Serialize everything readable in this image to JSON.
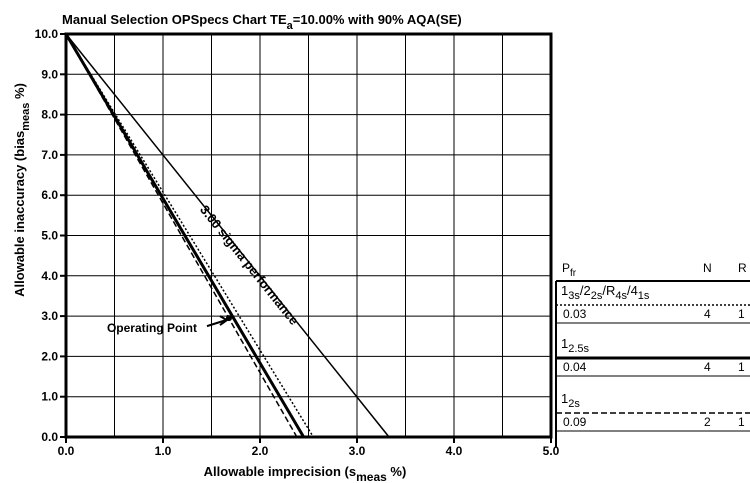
{
  "chart_data": {
    "type": "line",
    "title": {
      "main": "Manual Selection OPSpecs Chart TE",
      "sub": "a",
      "rest": "=10.00% with 90% AQA(SE)"
    },
    "xlabel": {
      "main": "Allowable imprecision (s",
      "sub": "meas",
      "rest": " %)"
    },
    "ylabel": {
      "main": "Allowable inaccuracy (bias",
      "sub": "meas",
      "rest": " %)"
    },
    "xlim": [
      0.0,
      5.0
    ],
    "ylim": [
      0.0,
      10.0
    ],
    "x_ticks": [
      "0.0",
      "1.0",
      "2.0",
      "3.0",
      "4.0",
      "5.0"
    ],
    "y_ticks": [
      "0.0",
      "1.0",
      "2.0",
      "3.0",
      "4.0",
      "5.0",
      "6.0",
      "7.0",
      "8.0",
      "9.0",
      "10.0"
    ],
    "grid": true,
    "series": [
      {
        "name": "3.00 sigma performance",
        "style": "solid",
        "points": [
          [
            0.0,
            10.0
          ],
          [
            3.33,
            0.0
          ]
        ]
      },
      {
        "style": "dotted",
        "points": [
          [
            0.0,
            10.0
          ],
          [
            2.55,
            0.0
          ]
        ]
      },
      {
        "style": "thick",
        "points": [
          [
            0.0,
            10.0
          ],
          [
            2.45,
            0.0
          ]
        ]
      },
      {
        "style": "dashed",
        "points": [
          [
            0.0,
            10.0
          ],
          [
            2.38,
            0.0
          ]
        ]
      }
    ],
    "operating_point": {
      "label": "Operating Point",
      "x": 1.68,
      "y": 2.95
    },
    "sigma_label": "3.00 sigma performance",
    "legend": {
      "headers": {
        "pfr_main": "P",
        "pfr_sub": "fr",
        "n": "N",
        "r": "R"
      },
      "rules": [
        {
          "name_parts": [
            [
              "1",
              "n"
            ],
            [
              "3s",
              "s"
            ],
            [
              "/2",
              "n"
            ],
            [
              "2s",
              "s"
            ],
            [
              "/R",
              "n"
            ],
            [
              "4s",
              "s"
            ],
            [
              "/4",
              "n"
            ],
            [
              "1s",
              "s"
            ]
          ],
          "pfr": "0.03",
          "n": "4",
          "r": "1",
          "line": "dotted"
        },
        {
          "name_parts": [
            [
              "1",
              "n"
            ],
            [
              "2.5s",
              "s"
            ]
          ],
          "pfr": "0.04",
          "n": "4",
          "r": "1",
          "line": "thick"
        },
        {
          "name_parts": [
            [
              "1",
              "n"
            ],
            [
              "2s",
              "s"
            ]
          ],
          "pfr": "0.09",
          "n": "2",
          "r": "1",
          "line": "dashed"
        }
      ]
    }
  }
}
